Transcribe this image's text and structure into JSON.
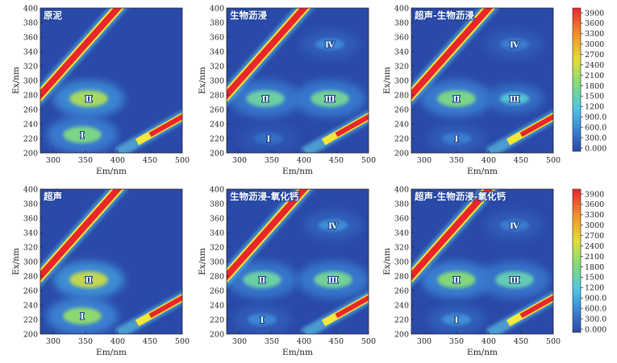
{
  "chart_data": [
    {
      "type": "heatmap",
      "title": "原泥",
      "xlabel": "Em/nm",
      "ylabel": "Ex/nm",
      "xlim": [
        280,
        500
      ],
      "ylim": [
        200,
        400
      ],
      "x_ticks": [
        300,
        350,
        400,
        450,
        500
      ],
      "y_ticks": [
        200,
        220,
        240,
        260,
        280,
        300,
        320,
        340,
        360,
        380,
        400
      ],
      "peaks": [
        {
          "label": "Ⅱ",
          "em": 355,
          "ex": 275,
          "intensity": 2400
        },
        {
          "label": "Ⅰ",
          "em": 345,
          "ex": 225,
          "intensity": 2000
        }
      ]
    },
    {
      "type": "heatmap",
      "title": "生物沥浸",
      "xlabel": "Em/nm",
      "ylabel": "Ex/nm",
      "xlim": [
        280,
        500
      ],
      "ylim": [
        200,
        400
      ],
      "x_ticks": [
        300,
        350,
        400,
        450,
        500
      ],
      "y_ticks": [
        200,
        220,
        240,
        260,
        280,
        300,
        320,
        340,
        360,
        380,
        400
      ],
      "peaks": [
        {
          "label": "Ⅰ",
          "em": 345,
          "ex": 220,
          "intensity": 500
        },
        {
          "label": "Ⅱ",
          "em": 340,
          "ex": 275,
          "intensity": 1800
        },
        {
          "label": "Ⅲ",
          "em": 440,
          "ex": 275,
          "intensity": 1900
        },
        {
          "label": "Ⅳ",
          "em": 440,
          "ex": 350,
          "intensity": 800
        }
      ]
    },
    {
      "type": "heatmap",
      "title": "超声-生物沥浸",
      "xlabel": "Em/nm",
      "ylabel": "Ex/nm",
      "xlim": [
        280,
        500
      ],
      "ylim": [
        200,
        400
      ],
      "x_ticks": [
        300,
        350,
        400,
        450,
        500
      ],
      "y_ticks": [
        200,
        220,
        240,
        260,
        280,
        300,
        320,
        340,
        360,
        380,
        400
      ],
      "peaks": [
        {
          "label": "Ⅰ",
          "em": 350,
          "ex": 220,
          "intensity": 700
        },
        {
          "label": "Ⅱ",
          "em": 350,
          "ex": 275,
          "intensity": 2000
        },
        {
          "label": "Ⅲ",
          "em": 440,
          "ex": 275,
          "intensity": 1500
        },
        {
          "label": "Ⅳ",
          "em": 440,
          "ex": 350,
          "intensity": 700
        }
      ]
    },
    {
      "type": "heatmap",
      "title": "超声",
      "xlabel": "Em/nm",
      "ylabel": "Ex/nm",
      "xlim": [
        280,
        500
      ],
      "ylim": [
        200,
        400
      ],
      "x_ticks": [
        300,
        350,
        400,
        450,
        500
      ],
      "y_ticks": [
        200,
        220,
        240,
        260,
        280,
        300,
        320,
        340,
        360,
        380,
        400
      ],
      "peaks": [
        {
          "label": "Ⅱ",
          "em": 355,
          "ex": 275,
          "intensity": 2600
        },
        {
          "label": "Ⅰ",
          "em": 345,
          "ex": 225,
          "intensity": 2200
        }
      ]
    },
    {
      "type": "heatmap",
      "title": "生物沥浸-氧化钙",
      "xlabel": "Em/nm",
      "ylabel": "Ex/nm",
      "xlim": [
        280,
        500
      ],
      "ylim": [
        200,
        400
      ],
      "x_ticks": [
        300,
        350,
        400,
        450,
        500
      ],
      "y_ticks": [
        200,
        220,
        240,
        260,
        280,
        300,
        320,
        340,
        360,
        380,
        400
      ],
      "peaks": [
        {
          "label": "Ⅰ",
          "em": 335,
          "ex": 220,
          "intensity": 800
        },
        {
          "label": "Ⅱ",
          "em": 335,
          "ex": 275,
          "intensity": 1800
        },
        {
          "label": "Ⅲ",
          "em": 445,
          "ex": 275,
          "intensity": 1900
        },
        {
          "label": "Ⅳ",
          "em": 445,
          "ex": 350,
          "intensity": 900
        }
      ]
    },
    {
      "type": "heatmap",
      "title": "超声-生物沥浸-氧化钙",
      "xlabel": "Em/nm",
      "ylabel": "Ex/nm",
      "xlim": [
        280,
        500
      ],
      "ylim": [
        200,
        400
      ],
      "x_ticks": [
        300,
        350,
        400,
        450,
        500
      ],
      "y_ticks": [
        200,
        220,
        240,
        260,
        280,
        300,
        320,
        340,
        360,
        380,
        400
      ],
      "peaks": [
        {
          "label": "Ⅰ",
          "em": 350,
          "ex": 220,
          "intensity": 900
        },
        {
          "label": "Ⅱ",
          "em": 350,
          "ex": 275,
          "intensity": 2100
        },
        {
          "label": "Ⅲ",
          "em": 440,
          "ex": 275,
          "intensity": 1700
        },
        {
          "label": "Ⅳ",
          "em": 440,
          "ex": 350,
          "intensity": 700
        }
      ]
    }
  ],
  "colorbar": {
    "ticks": [
      "3900",
      "3600",
      "3300",
      "3000",
      "2700",
      "2400",
      "2100",
      "1800",
      "1500",
      "1200",
      "900.0",
      "600.0",
      "300.0",
      "0.000"
    ],
    "range": [
      0,
      4200
    ],
    "colors": [
      "#2a47a8",
      "#3a7fd3",
      "#4fc6e4",
      "#86dd74",
      "#e2dc3a",
      "#f29a2e",
      "#e8262b"
    ]
  }
}
